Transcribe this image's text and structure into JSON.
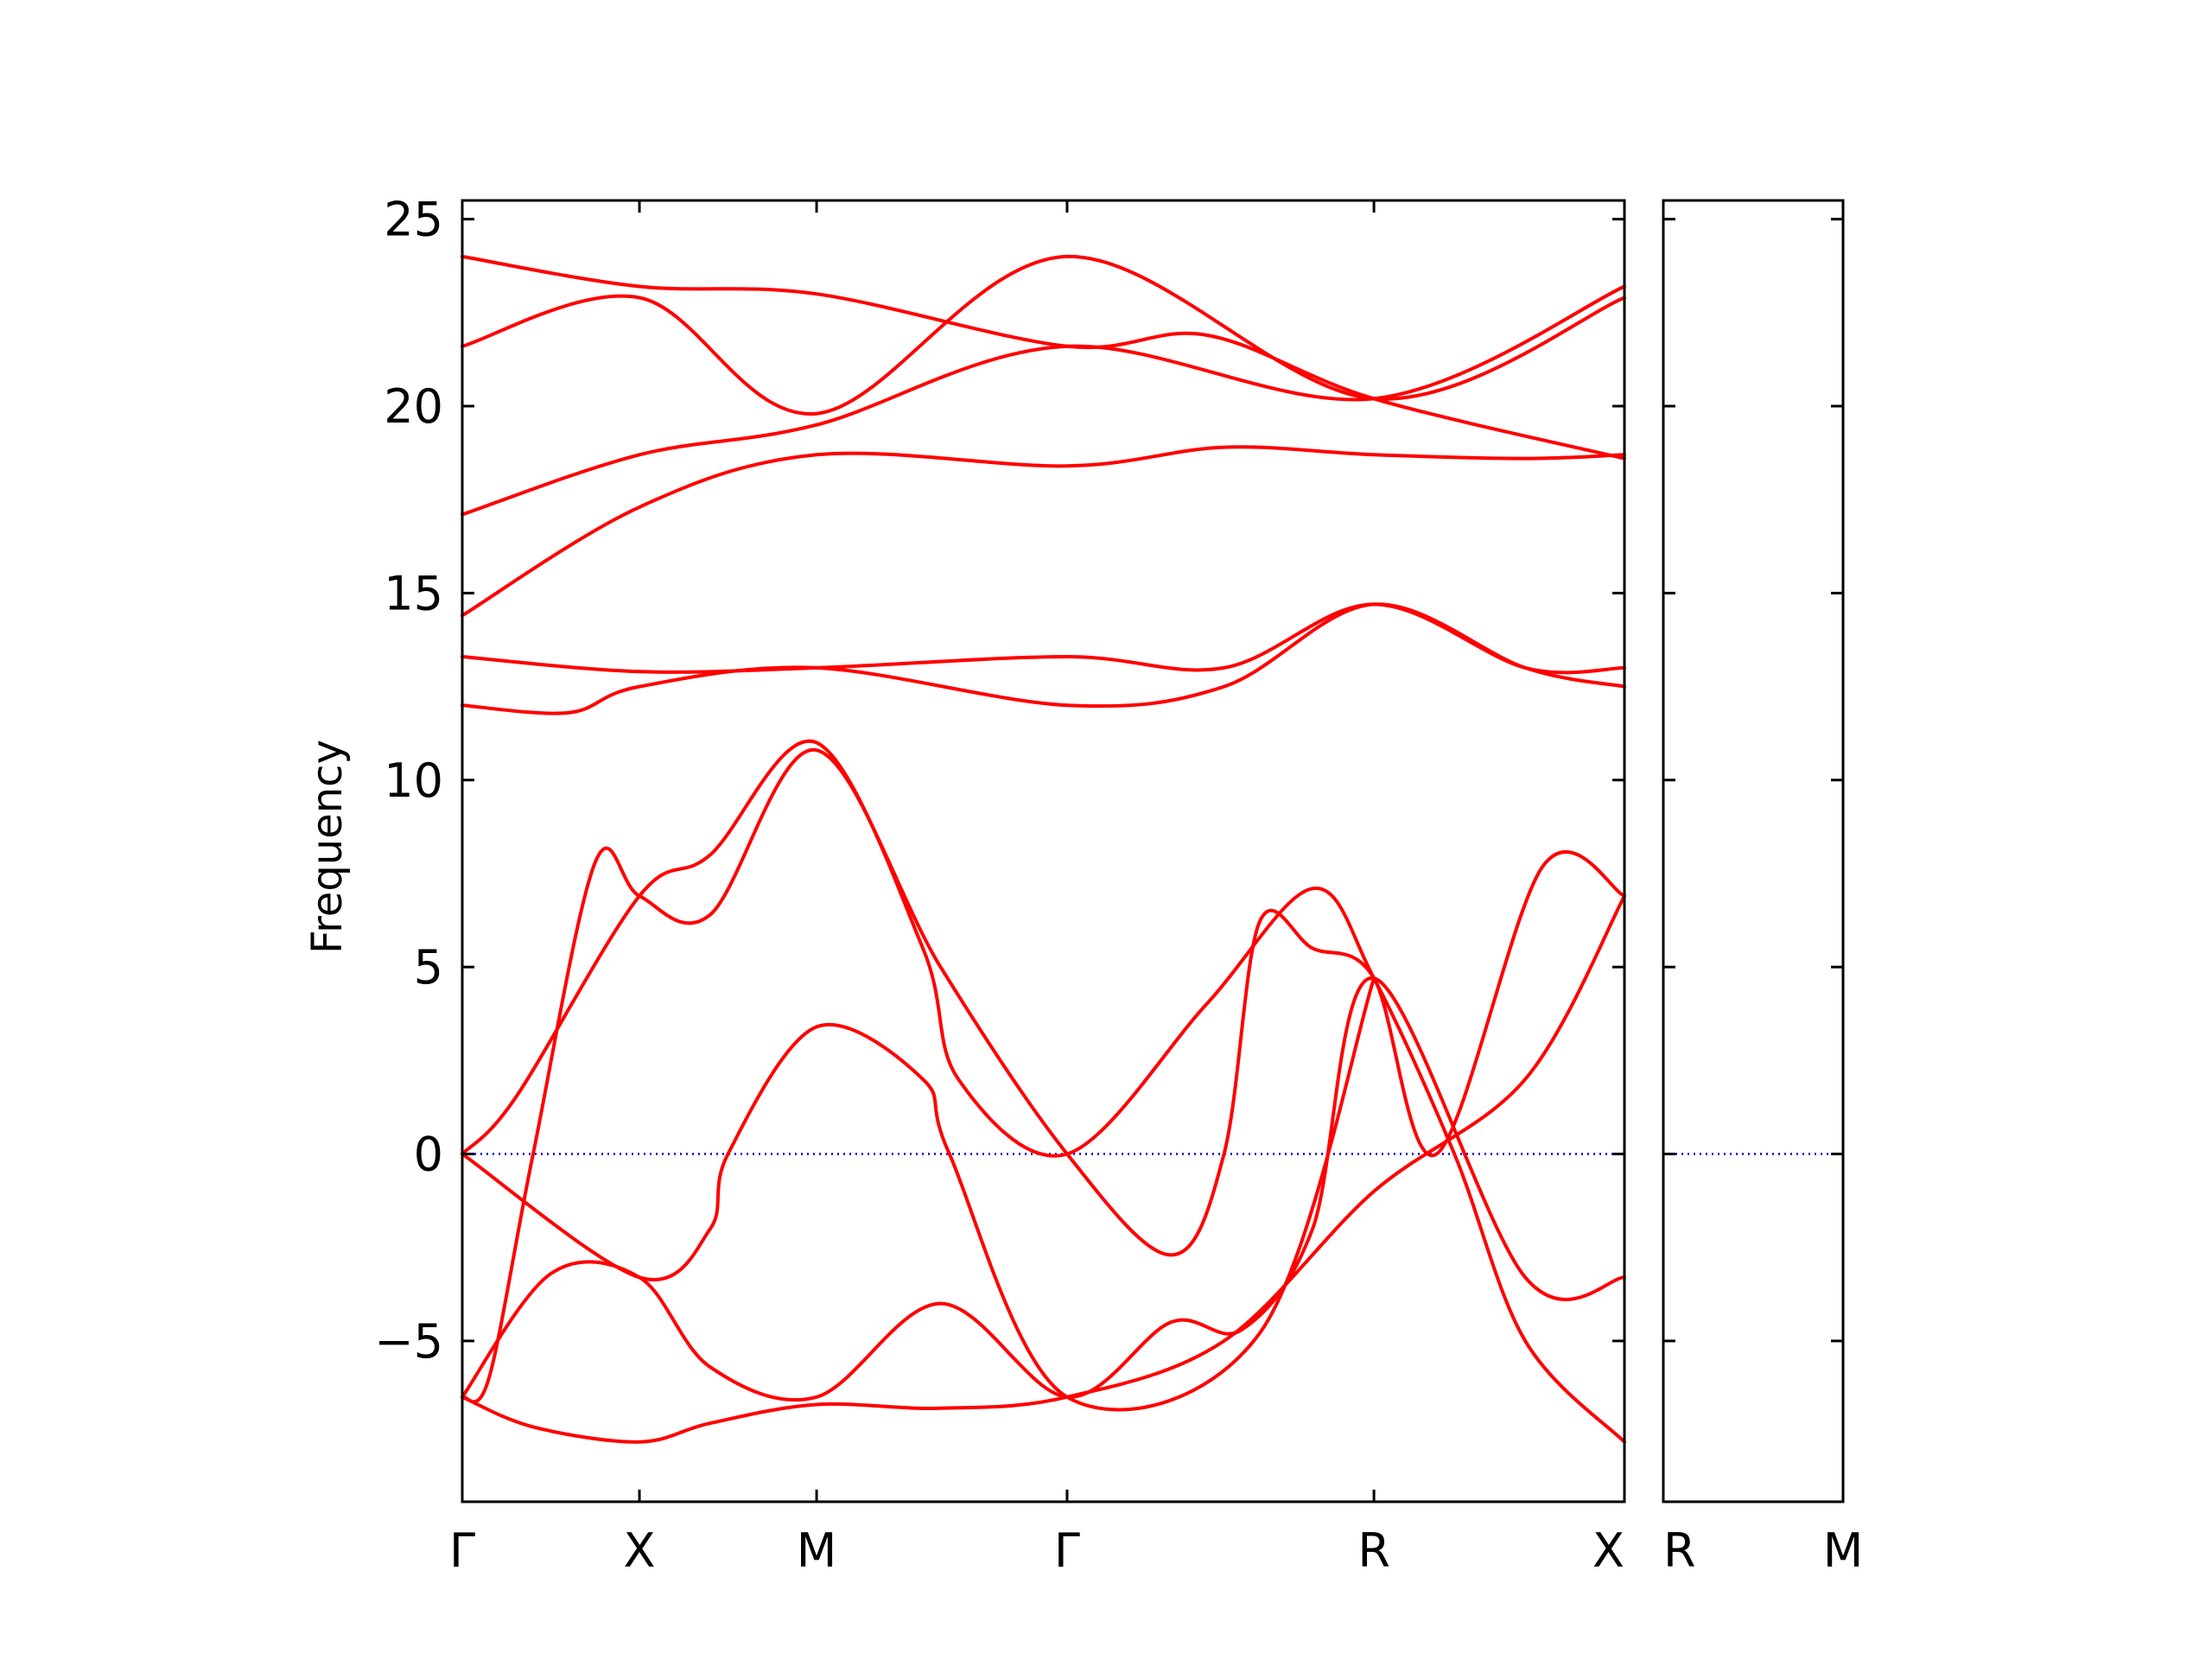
{
  "chart_data": {
    "type": "line",
    "title": "",
    "ylabel": "Frequency",
    "xlabel": "",
    "ylim": [
      -9.3,
      25.5
    ],
    "yticks": [
      -5,
      0,
      5,
      10,
      15,
      20,
      25
    ],
    "ytick_labels": [
      "−5",
      "0",
      "5",
      "10",
      "15",
      "20",
      "25"
    ],
    "grid": false,
    "legend": "none",
    "colors": {
      "bands": "#ff0000",
      "zero_line": "#0000cc",
      "axes": "#000000"
    },
    "segments": [
      {
        "name": "main",
        "path_labels": [
          "Γ",
          "X",
          "M",
          "Γ",
          "R",
          "X"
        ],
        "path_positions": [
          0,
          1,
          2,
          3.414,
          5.146,
          6.56
        ]
      },
      {
        "name": "R-M",
        "path_labels": [
          "R",
          "M"
        ],
        "path_positions": [
          0,
          1
        ]
      }
    ],
    "series": [
      {
        "segment": 0,
        "x": [
          0,
          0.4,
          1,
          1.4,
          2,
          2.7,
          3.414,
          4.3,
          5.146,
          6,
          6.56
        ],
        "y": [
          -6.5,
          -7.3,
          -7.7,
          -7.2,
          -6.7,
          -6.8,
          -6.5,
          -5.0,
          -1.0,
          2.0,
          6.9
        ]
      },
      {
        "segment": 0,
        "x": [
          0,
          0.5,
          1,
          1.4,
          2,
          2.7,
          3.414,
          4.0,
          4.4,
          4.8,
          5.146,
          6,
          6.56
        ],
        "y": [
          -6.5,
          -3.2,
          -3.3,
          -5.7,
          -6.5,
          -4.0,
          -6.5,
          -4.5,
          -4.7,
          -2.0,
          4.7,
          -3.3,
          -3.3
        ]
      },
      {
        "segment": 0,
        "x": [
          0,
          0.15,
          0.4,
          0.75,
          1,
          1.4,
          2,
          2.7,
          3.414,
          4.0,
          4.3,
          4.5,
          4.8,
          5.146,
          5.5,
          6.1,
          6.56
        ],
        "y": [
          -6.5,
          -6.0,
          0.0,
          7.8,
          6.9,
          6.4,
          10.8,
          5.0,
          0.0,
          -2.7,
          0.0,
          6.2,
          5.5,
          4.7,
          0.0,
          7.7,
          6.9
        ]
      },
      {
        "segment": 0,
        "x": [
          0,
          0.3,
          1,
          1.4,
          2,
          2.6,
          2.8,
          3.414,
          4.2,
          4.8,
          5.146,
          5.6,
          6,
          6.56
        ],
        "y": [
          0,
          1.5,
          6.9,
          8.0,
          11.0,
          5.5,
          2.0,
          0.0,
          4.0,
          7.1,
          4.7,
          0.0,
          -5.0,
          -7.7
        ]
      },
      {
        "segment": 0,
        "x": [
          0,
          1,
          1.4,
          1.5,
          2,
          2.6,
          2.75,
          3.414,
          4.5,
          5.146
        ],
        "y": [
          0,
          -3.3,
          -2.0,
          0.0,
          3.4,
          2.0,
          0.0,
          -6.5,
          -4.8,
          4.7
        ]
      },
      {
        "segment": 0,
        "x": [
          0,
          0.6,
          1,
          2,
          3.414,
          4.3,
          5.146,
          6,
          6.56
        ],
        "y": [
          12.0,
          11.8,
          12.5,
          13.0,
          12.0,
          12.5,
          14.7,
          13.0,
          12.5
        ]
      },
      {
        "segment": 0,
        "x": [
          0,
          1,
          2,
          3.414,
          4.3,
          5.146,
          6,
          6.56
        ],
        "y": [
          13.3,
          12.9,
          13.0,
          13.3,
          13.0,
          14.7,
          13.0,
          13.0
        ]
      },
      {
        "segment": 0,
        "x": [
          0,
          1,
          2,
          3.414,
          4.3,
          5.146,
          6,
          6.56
        ],
        "y": [
          14.4,
          17.3,
          18.7,
          18.4,
          18.9,
          18.7,
          18.6,
          18.7
        ]
      },
      {
        "segment": 0,
        "x": [
          0,
          1,
          2,
          3.414,
          5.146,
          6.56
        ],
        "y": [
          17.1,
          18.7,
          19.5,
          21.6,
          20.2,
          23.2
        ]
      },
      {
        "segment": 0,
        "x": [
          0,
          1,
          2,
          3.414,
          5.146,
          6.56
        ],
        "y": [
          21.6,
          22.9,
          19.8,
          24.0,
          20.2,
          22.9
        ]
      },
      {
        "segment": 0,
        "x": [
          0,
          1,
          2,
          3.414,
          4.2,
          5.146,
          6.56
        ],
        "y": [
          24.0,
          23.2,
          23.0,
          21.6,
          21.9,
          20.2,
          18.6
        ]
      }
    ]
  }
}
